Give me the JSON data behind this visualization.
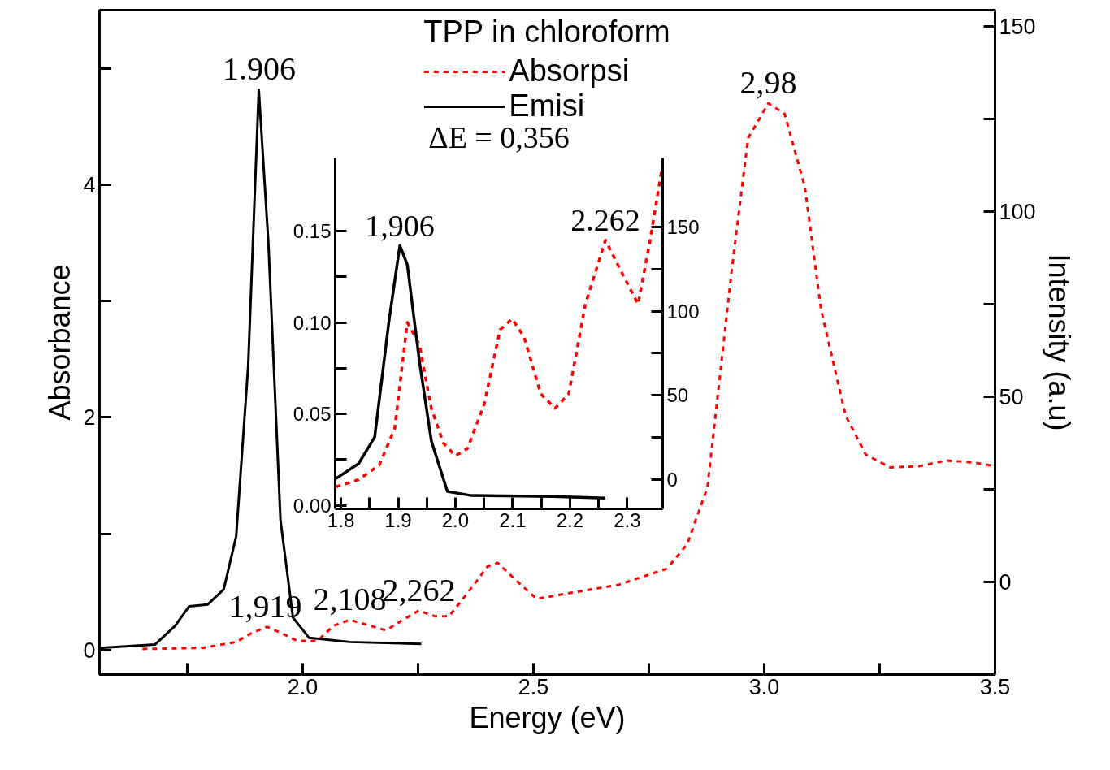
{
  "chart_data": [
    {
      "type": "line",
      "xlabel": "Energy (eV)",
      "ylabel": "Absorbance",
      "y2label": "Intensity (a.u)",
      "legend_title": "TPP in chloroform",
      "legend": "top",
      "grid": false,
      "xlim": [
        1.56,
        3.5
      ],
      "ylim": [
        -0.21,
        5.5
      ],
      "y2lim": [
        -25,
        154.4
      ],
      "xticks": [
        {
          "value": 1.75,
          "label": null
        },
        {
          "value": 2,
          "label": "2.0"
        },
        {
          "value": 2.25,
          "label": null
        },
        2.5,
        {
          "value": 2.75,
          "label": null
        },
        {
          "value": 3,
          "label": "3.0"
        },
        {
          "value": 3.25,
          "label": null
        },
        3.5
      ],
      "yticks": [
        0,
        {
          "value": 1,
          "label": null
        },
        2,
        {
          "value": 3,
          "label": null
        },
        4,
        {
          "value": 5,
          "label": null
        }
      ],
      "y2ticks": [
        {
          "value": -25,
          "label": null
        },
        0,
        {
          "value": 25,
          "label": null
        },
        50,
        {
          "value": 75,
          "label": null
        },
        100,
        {
          "value": 125,
          "label": null
        },
        150
      ],
      "series": [
        {
          "name": "Absorpsi",
          "color": "#ff0000",
          "line_style": "dashed",
          "x": [
            1.653,
            1.785,
            1.856,
            1.891,
            1.923,
            1.952,
            1.988,
            2.032,
            2.067,
            2.102,
            2.137,
            2.181,
            2.217,
            2.252,
            2.287,
            2.317,
            2.357,
            2.401,
            2.423,
            2.454,
            2.507,
            2.577,
            2.683,
            2.789,
            2.833,
            2.877,
            2.93,
            2.965,
            3.009,
            3.044,
            3.088,
            3.123,
            3.176,
            3.22,
            3.273,
            3.335,
            3.396,
            3.458,
            3.5
          ],
          "values": [
            0.01,
            0.02,
            0.07,
            0.15,
            0.2,
            0.15,
            0.08,
            0.08,
            0.21,
            0.26,
            0.22,
            0.17,
            0.26,
            0.34,
            0.29,
            0.29,
            0.49,
            0.72,
            0.75,
            0.63,
            0.44,
            0.49,
            0.56,
            0.7,
            0.91,
            1.4,
            3.28,
            4.4,
            4.7,
            4.61,
            3.98,
            2.93,
            2.02,
            1.68,
            1.57,
            1.58,
            1.63,
            1.61,
            1.58
          ]
        },
        {
          "name": "Emisi",
          "color": "#000000",
          "line_style": "solid",
          "axis": "y2",
          "x": [
            1.56,
            1.68,
            1.724,
            1.754,
            1.794,
            1.829,
            1.856,
            1.882,
            1.905,
            1.926,
            1.952,
            1.979,
            2.014,
            2.102,
            2.257
          ],
          "values": [
            -17.8,
            -16.9,
            -11.8,
            -6.6,
            -6.1,
            -2.0,
            12.3,
            58.3,
            132.9,
            91.2,
            16.7,
            -9.6,
            -15.1,
            -16.2,
            -16.7
          ]
        }
      ],
      "annotations": [
        {
          "text": "1.906",
          "x": 1.906,
          "y": 4.82
        },
        {
          "text": "2,98",
          "x": 3.009,
          "y": 4.7
        },
        {
          "text": "1,919",
          "x": 1.919,
          "y": 0.2
        },
        {
          "text": "2,108",
          "x": 2.102,
          "y": 0.26
        },
        {
          "text": "2,262",
          "x": 2.252,
          "y": 0.34
        }
      ]
    },
    {
      "type": "line",
      "legend": false,
      "grid": false,
      "xlim": [
        1.79,
        2.362
      ],
      "ylim": [
        -0.002,
        0.19
      ],
      "y2lim": [
        -17.4,
        191
      ],
      "xticks": [
        1.8,
        {
          "value": 1.85,
          "label": null
        },
        1.9,
        {
          "value": 1.95,
          "label": null
        },
        {
          "value": 2,
          "label": "2.0"
        },
        {
          "value": 2.05,
          "label": null
        },
        2.1,
        {
          "value": 2.15,
          "label": null
        },
        2.2,
        {
          "value": 2.25,
          "label": null
        },
        2.3
      ],
      "yticks": [
        {
          "value": 0,
          "label": "0.00"
        },
        {
          "value": 0.025,
          "label": null
        },
        0.05,
        {
          "value": 0.075,
          "label": null
        },
        {
          "value": 0.1,
          "label": "0.10"
        },
        {
          "value": 0.125,
          "label": null
        },
        0.15
      ],
      "y2ticks": [
        0,
        {
          "value": 25,
          "label": null
        },
        50,
        {
          "value": 75,
          "label": null
        },
        100,
        {
          "value": 125,
          "label": null
        },
        150
      ],
      "series": [
        {
          "color": "#ff0000",
          "line_style": "dashed",
          "x": [
            1.791,
            1.831,
            1.867,
            1.894,
            1.916,
            1.937,
            1.958,
            1.979,
            2.0,
            2.021,
            2.05,
            2.078,
            2.099,
            2.12,
            2.149,
            2.174,
            2.198,
            2.227,
            2.262,
            2.291,
            2.319,
            2.34,
            2.36
          ],
          "values": [
            0.01,
            0.014,
            0.022,
            0.042,
            0.1,
            0.088,
            0.053,
            0.034,
            0.027,
            0.031,
            0.055,
            0.096,
            0.102,
            0.092,
            0.061,
            0.053,
            0.061,
            0.11,
            0.145,
            0.127,
            0.11,
            0.145,
            0.183
          ]
        },
        {
          "color": "#000000",
          "line_style": "solid",
          "axis": "y2",
          "x": [
            1.791,
            1.831,
            1.859,
            1.884,
            1.903,
            1.916,
            1.937,
            1.958,
            1.986,
            2.028,
            2.17,
            2.262
          ],
          "values": [
            0.5,
            9.5,
            25.2,
            94.3,
            139.0,
            127.6,
            70.5,
            22.9,
            -7.1,
            -9.5,
            -10.0,
            -11.0
          ]
        }
      ],
      "annotations": [
        "ΔE = 0,356",
        {
          "text": "1,906",
          "x": 1.903,
          "y": 0.142
        },
        {
          "text": "2.262",
          "x": 2.262,
          "y": 0.145
        }
      ]
    }
  ]
}
